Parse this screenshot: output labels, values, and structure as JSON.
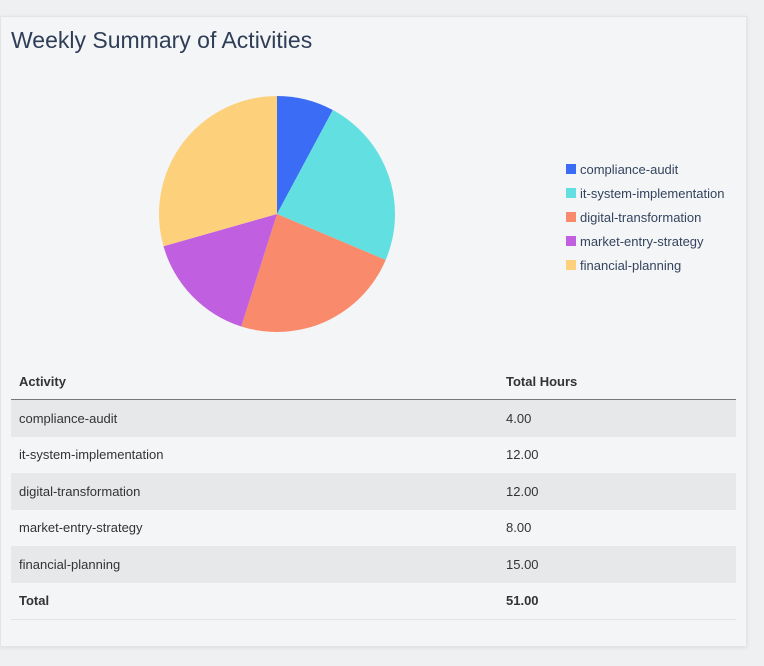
{
  "title": "Weekly Summary of Activities",
  "chart_data": {
    "type": "pie",
    "categories": [
      "compliance-audit",
      "it-system-implementation",
      "digital-transformation",
      "market-entry-strategy",
      "financial-planning"
    ],
    "values": [
      4,
      12,
      12,
      8,
      15
    ],
    "colors": [
      "#3b6cf6",
      "#62dfe0",
      "#f98a6b",
      "#c05fe0",
      "#fdd17b"
    ],
    "legend_position": "right"
  },
  "table": {
    "headers": [
      "Activity",
      "Total Hours"
    ],
    "rows": [
      [
        "compliance-audit",
        "4.00"
      ],
      [
        "it-system-implementation",
        "12.00"
      ],
      [
        "digital-transformation",
        "12.00"
      ],
      [
        "market-entry-strategy",
        "8.00"
      ],
      [
        "financial-planning",
        "15.00"
      ]
    ],
    "total": [
      "Total",
      "51.00"
    ]
  }
}
